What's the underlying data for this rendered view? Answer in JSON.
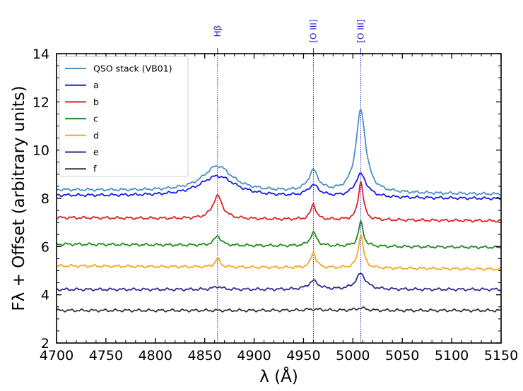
{
  "chart_data": {
    "type": "line",
    "xlabel": "λ (Å)",
    "ylabel": "Fλ + Offset (arbitrary units)",
    "xlim": [
      4700,
      5150
    ],
    "ylim": [
      2,
      14
    ],
    "xticks": [
      "4700",
      "4750",
      "4800",
      "4850",
      "4900",
      "4950",
      "5000",
      "5050",
      "5100",
      "5150"
    ],
    "yticks": [
      "2",
      "4",
      "6",
      "8",
      "10",
      "12",
      "14"
    ],
    "annotations": [
      {
        "label": "Hβ",
        "x": 4863
      },
      {
        "label": "[O III]",
        "x": 4960
      },
      {
        "label": "[O III]",
        "x": 5008
      }
    ],
    "legend_position": "upper-left",
    "series": [
      {
        "name": "QSO stack (VB01)",
        "color": "#4a90c0",
        "baseline": 8.35,
        "slope": -0.0004,
        "peaks": [
          [
            4863,
            1.05,
            18
          ],
          [
            4960,
            0.85,
            6
          ],
          [
            5008,
            3.4,
            6
          ]
        ]
      },
      {
        "name": "a",
        "color": "#1a1ae6",
        "baseline": 8.12,
        "slope": -0.0003,
        "peaks": [
          [
            4863,
            0.85,
            22
          ],
          [
            4960,
            0.45,
            7
          ],
          [
            5008,
            0.95,
            7
          ]
        ]
      },
      {
        "name": "b",
        "color": "#e02020",
        "baseline": 7.2,
        "slope": -0.0003,
        "peaks": [
          [
            4863,
            0.95,
            6
          ],
          [
            4960,
            0.65,
            3
          ],
          [
            5008,
            1.6,
            3
          ]
        ]
      },
      {
        "name": "c",
        "color": "#1e8a1e",
        "baseline": 6.1,
        "slope": -0.0003,
        "peaks": [
          [
            4863,
            0.4,
            4
          ],
          [
            4960,
            0.55,
            4
          ],
          [
            5008,
            1.0,
            3
          ]
        ]
      },
      {
        "name": "d",
        "color": "#f5a623",
        "baseline": 5.2,
        "slope": -0.0003,
        "peaks": [
          [
            4863,
            0.35,
            3
          ],
          [
            4960,
            0.65,
            3
          ],
          [
            5008,
            1.4,
            3
          ]
        ]
      },
      {
        "name": "e",
        "color": "#2b2b8c",
        "baseline": 4.22,
        "slope": 0.0,
        "peaks": [
          [
            4863,
            0.12,
            5
          ],
          [
            4960,
            0.35,
            6
          ],
          [
            5008,
            0.65,
            6
          ]
        ]
      },
      {
        "name": "f",
        "color": "#333333",
        "baseline": 3.35,
        "slope": 0.0,
        "peaks": [
          [
            4960,
            0.05,
            10
          ],
          [
            5008,
            0.1,
            6
          ]
        ]
      }
    ]
  }
}
